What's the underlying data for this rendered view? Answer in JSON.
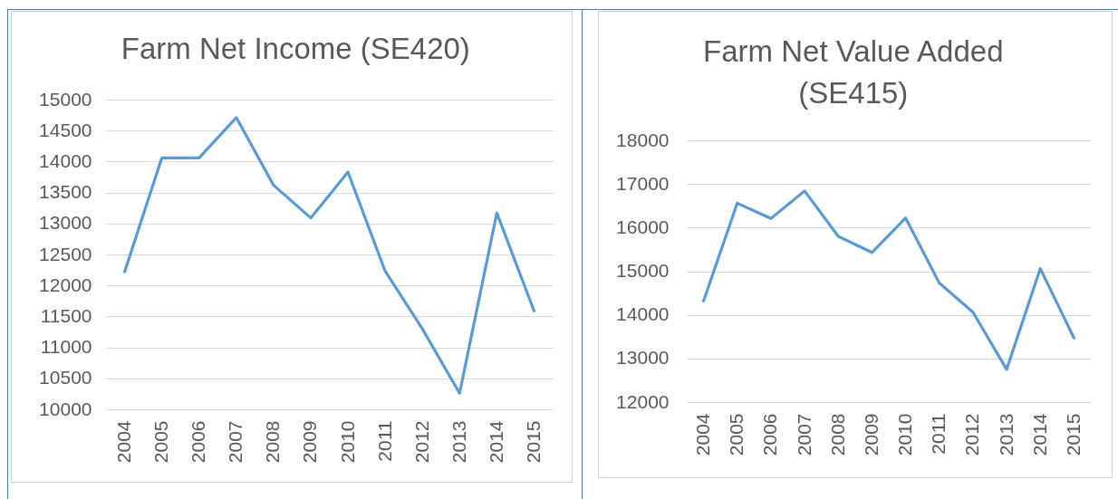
{
  "chart_data": [
    {
      "type": "line",
      "title": "Farm Net Income (SE420)",
      "categories": [
        "2004",
        "2005",
        "2006",
        "2007",
        "2008",
        "2009",
        "2010",
        "2011",
        "2012",
        "2013",
        "2014",
        "2015"
      ],
      "series": [
        {
          "color": "#5b9bd5",
          "values": [
            12220,
            14060,
            14060,
            14710,
            13620,
            13090,
            13830,
            12230,
            11300,
            10260,
            13170,
            11590
          ]
        }
      ],
      "ylim": [
        10000,
        15000
      ],
      "yticks": [
        10000,
        10500,
        11000,
        11500,
        12000,
        12500,
        13000,
        13500,
        14000,
        14500,
        15000
      ],
      "grid": "y"
    },
    {
      "type": "line",
      "title": "Farm Net Value Added (SE415)",
      "categories": [
        "2004",
        "2005",
        "2006",
        "2007",
        "2008",
        "2009",
        "2010",
        "2011",
        "2012",
        "2013",
        "2014",
        "2015"
      ],
      "series": [
        {
          "color": "#5b9bd5",
          "values": [
            14320,
            16560,
            16210,
            16840,
            15800,
            15430,
            16220,
            14730,
            14060,
            12750,
            15060,
            13470
          ]
        }
      ],
      "ylim": [
        12000,
        18000
      ],
      "yticks": [
        12000,
        13000,
        14000,
        15000,
        16000,
        17000,
        18000
      ],
      "grid": "y"
    }
  ]
}
